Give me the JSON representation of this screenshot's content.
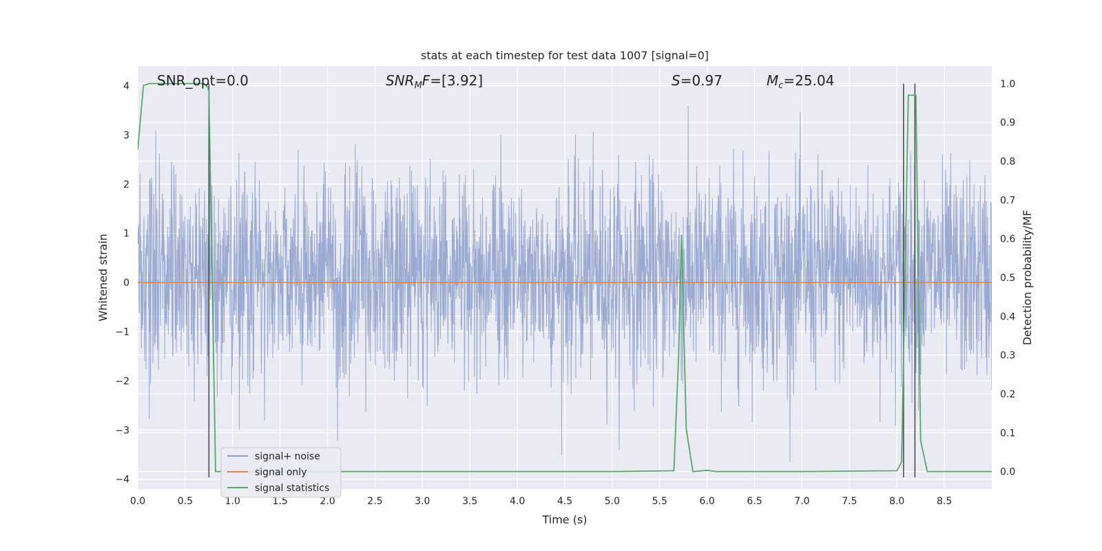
{
  "chart_data": {
    "type": "line",
    "title": "stats at each timestep for test data 1007 [signal=0]",
    "xlabel": "Time (s)",
    "ylabel_left": "Whitened strain",
    "ylabel_right": "Detection probability/MF",
    "xlim": [
      0.0,
      9.0
    ],
    "ylim_left": [
      -4.2,
      4.4
    ],
    "ylim_right": [
      -0.045,
      1.045
    ],
    "x_ticks": [
      "0.0",
      "0.5",
      "1.0",
      "1.5",
      "2.0",
      "2.5",
      "3.0",
      "3.5",
      "4.0",
      "4.5",
      "5.0",
      "5.5",
      "6.0",
      "6.5",
      "7.0",
      "7.5",
      "8.0",
      "8.5"
    ],
    "y_ticks_left": [
      "−4",
      "−3",
      "−2",
      "−1",
      "0",
      "1",
      "2",
      "3",
      "4"
    ],
    "y_ticks_right": [
      "0.0",
      "0.1",
      "0.2",
      "0.3",
      "0.4",
      "0.5",
      "0.6",
      "0.7",
      "0.8",
      "0.9",
      "1.0"
    ],
    "grid": true,
    "legend_position": "lower-left",
    "annotations": {
      "snr_opt": "SNR_opt=0.0",
      "snr_mf": "=[3.92]",
      "s_value": "=0.97",
      "mc_value": "=25.04"
    },
    "series": [
      {
        "name": "signal+ noise",
        "color": "#8c9fcc",
        "amplitude_range": [
          -3.65,
          4.0
        ],
        "typical_band": [
          -1.3,
          1.6
        ]
      },
      {
        "name": "signal only",
        "color": "#dd8452",
        "x": [
          0.0,
          9.0
        ],
        "y": [
          0.0,
          0.0
        ]
      },
      {
        "name": "signal statistics",
        "color": "#55a868",
        "axis": "right",
        "x": [
          0.0,
          0.06,
          0.12,
          0.5,
          0.65,
          0.7,
          0.74,
          0.75,
          0.82,
          1.0,
          5.0,
          5.65,
          5.7,
          5.73,
          5.78,
          5.85,
          6.0,
          6.1,
          6.5,
          7.0,
          8.0,
          8.05,
          8.12,
          8.15,
          8.17,
          8.2,
          8.25,
          8.32,
          8.5,
          9.0
        ],
        "y": [
          0.83,
          0.995,
          1.0,
          1.0,
          1.0,
          1.0,
          0.99,
          0.98,
          0.0,
          0.0,
          0.0,
          0.002,
          0.3,
          0.61,
          0.11,
          0.0,
          0.003,
          0.0,
          0.0,
          0.0,
          0.002,
          0.025,
          0.97,
          0.97,
          0.97,
          0.97,
          0.08,
          0.0,
          0.0,
          0.0
        ]
      }
    ],
    "vertical_lines": [
      {
        "x": 0.75,
        "y_range": [
          -0.015,
          1.0
        ],
        "color": "#444444"
      },
      {
        "x": 8.07,
        "y_range": [
          -0.015,
          1.0
        ],
        "color": "#444444"
      },
      {
        "x": 8.19,
        "y_range": [
          -0.015,
          1.0
        ],
        "color": "#444444"
      }
    ]
  }
}
